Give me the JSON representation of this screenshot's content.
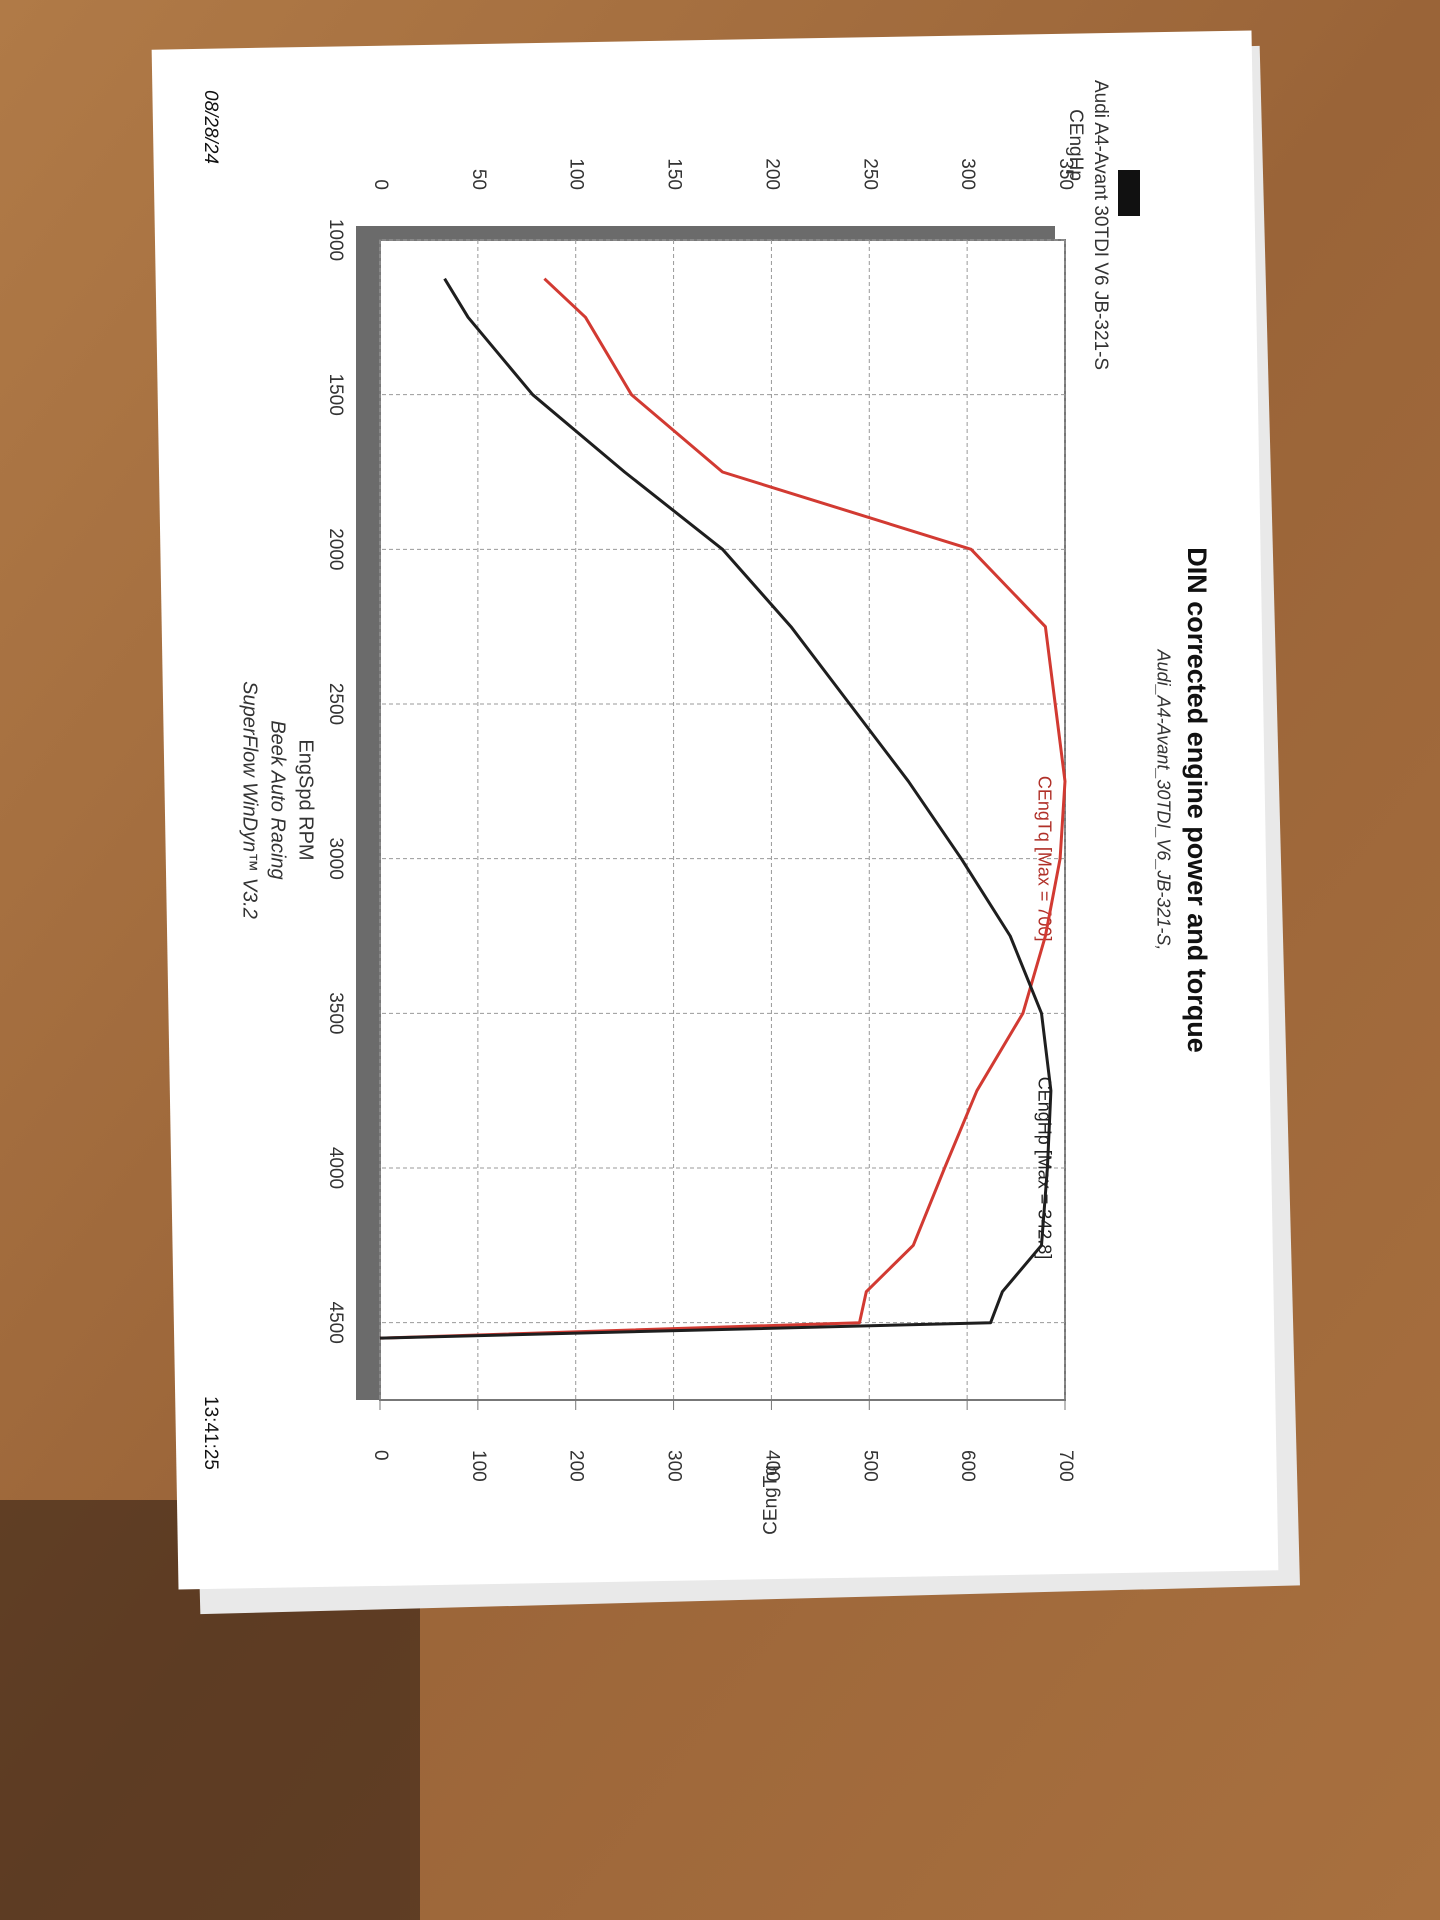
{
  "chart_data": {
    "type": "line",
    "title": "DIN corrected engine power and torque",
    "subtitle": "Audi_A4-Avant_30TDI_V6_JB-321-S,",
    "run_label": "Audi A4-Avant 30TDI V6 JB-321-S",
    "x_label": "EngSpd RPM",
    "y_label": "CEngHp",
    "y2_label": "CEngTq",
    "footer": [
      "Beek Auto Racing",
      "SuperFlow WinDyn™ V3.2"
    ],
    "date": "08/28/24",
    "time": "13:41:25",
    "annotations": [
      "CEngTq [Max = 700]",
      "CEngHp [Max = 342.8]"
    ],
    "x": [
      1125,
      1250,
      1500,
      1750,
      2000,
      2250,
      2500,
      2750,
      3000,
      3250,
      3500,
      3750,
      4000,
      4250,
      4400,
      4500,
      4550
    ],
    "series": [
      {
        "name": "CEngTq",
        "color": "#d23a32",
        "axis": "y2",
        "values": [
          168,
          210,
          257,
          350,
          604,
          680,
          690,
          700,
          695,
          680,
          657,
          610,
          577,
          545,
          497,
          490,
          0
        ]
      },
      {
        "name": "CEngHp",
        "color": "#1e1e1e",
        "axis": "y",
        "values": [
          33,
          45,
          78,
          125,
          175,
          210,
          240,
          270,
          297,
          322,
          338,
          342.8,
          341,
          338,
          318,
          312,
          0
        ]
      }
    ],
    "xlim": [
      1000,
      4750
    ],
    "xticks": [
      1000,
      1500,
      2000,
      2500,
      3000,
      3500,
      4000,
      4500
    ],
    "ylim": [
      0,
      350
    ],
    "yticks": [
      0,
      50,
      100,
      150,
      200,
      250,
      300,
      350
    ],
    "y2lim": [
      0,
      700
    ],
    "y2ticks": [
      0,
      100,
      200,
      300,
      400,
      500,
      600,
      700
    ],
    "grid": true
  }
}
